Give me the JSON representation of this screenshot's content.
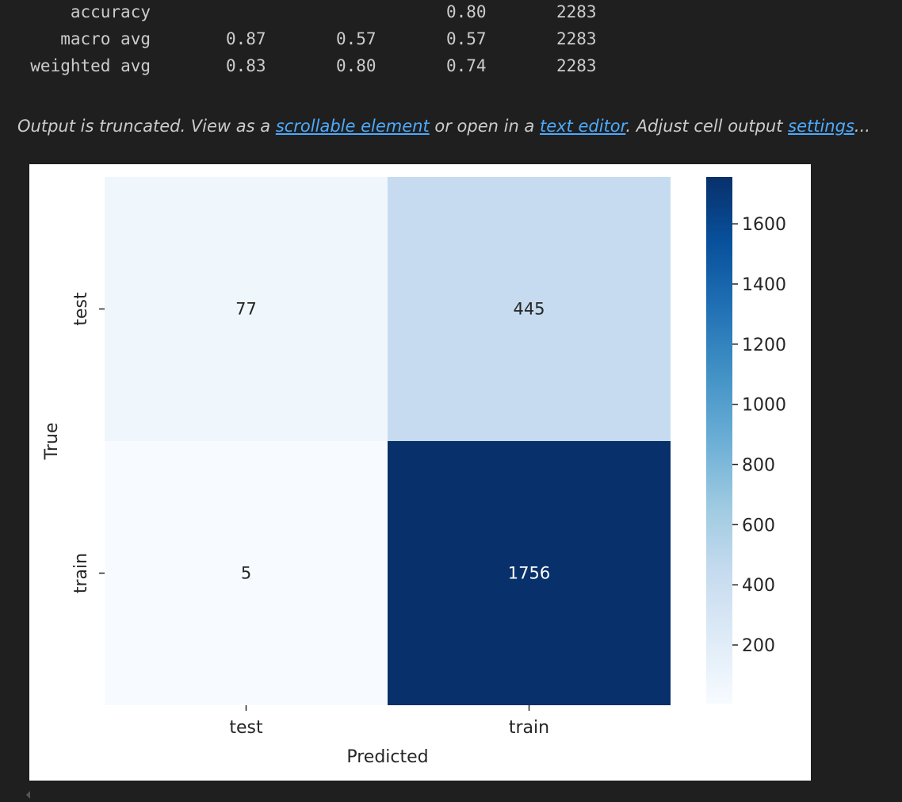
{
  "report": {
    "rows": [
      {
        "label": "accuracy",
        "precision": "",
        "recall": "",
        "f1": "0.80",
        "support": "2283"
      },
      {
        "label": "macro avg",
        "precision": "0.87",
        "recall": "0.57",
        "f1": "0.57",
        "support": "2283"
      },
      {
        "label": "weighted avg",
        "precision": "0.83",
        "recall": "0.80",
        "f1": "0.74",
        "support": "2283"
      }
    ]
  },
  "truncation": {
    "prefix": "Output is truncated. View as a ",
    "link_scrollable": "scrollable element",
    "middle": " or open in a ",
    "link_editor": "text editor",
    "after_editor": ". Adjust cell output ",
    "link_settings": "settings",
    "suffix": "..."
  },
  "chart_data": {
    "type": "heatmap",
    "xlabel": "Predicted",
    "ylabel": "True",
    "x_categories": [
      "test",
      "train"
    ],
    "y_categories": [
      "test",
      "train"
    ],
    "values": [
      [
        77,
        445
      ],
      [
        5,
        1756
      ]
    ],
    "colormap": "Blues",
    "colorbar": {
      "min": 5,
      "max": 1756,
      "ticks": [
        200,
        400,
        600,
        800,
        1000,
        1200,
        1400,
        1600
      ]
    },
    "grid": false
  }
}
